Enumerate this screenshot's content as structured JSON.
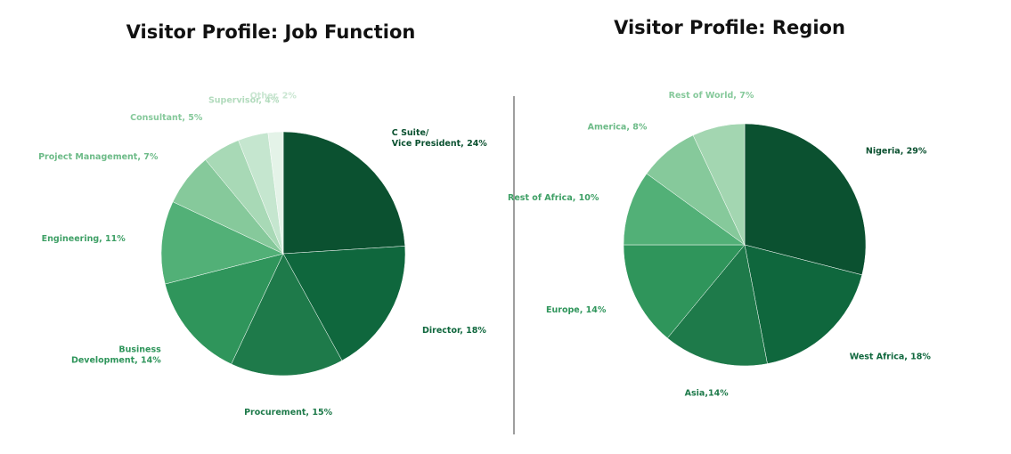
{
  "charts": {
    "left_title": "Visitor Profile: Job Function",
    "right_title": "Visitor Profile: Region"
  },
  "chart_data": [
    {
      "type": "pie",
      "title": "Visitor Profile: Job Function",
      "slices": [
        {
          "label": "C Suite/ Vice President",
          "label_lines": [
            "C Suite/",
            "Vice President, 24%"
          ],
          "value": 24,
          "color": "#0b5130",
          "label_color": "#0b5130"
        },
        {
          "label": "Director",
          "label_lines": [
            "Director, 18%"
          ],
          "value": 18,
          "color": "#0f673d",
          "label_color": "#0f673d"
        },
        {
          "label": "Procurement",
          "label_lines": [
            "Procurement, 15%"
          ],
          "value": 15,
          "color": "#1e7a4a",
          "label_color": "#1e7a4a"
        },
        {
          "label": "Business Development",
          "label_lines": [
            "Business",
            "Development, 14%"
          ],
          "value": 14,
          "color": "#2f955b",
          "label_color": "#2f955b"
        },
        {
          "label": "Engineering",
          "label_lines": [
            "Engineering, 11%"
          ],
          "value": 11,
          "color": "#52b077",
          "label_color": "#3fa066"
        },
        {
          "label": "Project Management",
          "label_lines": [
            "Project Management, 7%"
          ],
          "value": 7,
          "color": "#86c99b",
          "label_color": "#6dbb88"
        },
        {
          "label": "Consultant",
          "label_lines": [
            "Consultant, 5%"
          ],
          "value": 5,
          "color": "#a8d9b6",
          "label_color": "#86c99b"
        },
        {
          "label": "Supervisor",
          "label_lines": [
            "Supervisor, 4%"
          ],
          "value": 4,
          "color": "#c5e6cf",
          "label_color": "#b2dbbd"
        },
        {
          "label": "Other",
          "label_lines": [
            "Other, 2%"
          ],
          "value": 2,
          "color": "#e4f3e8",
          "label_color": "#c9e6d1"
        }
      ]
    },
    {
      "type": "pie",
      "title": "Visitor Profile: Region",
      "slices": [
        {
          "label": "Nigeria",
          "label_lines": [
            "Nigeria, 29%"
          ],
          "value": 29,
          "color": "#0b5130",
          "label_color": "#0b5130"
        },
        {
          "label": "West Africa",
          "label_lines": [
            "West Africa, 18%"
          ],
          "value": 18,
          "color": "#0f673d",
          "label_color": "#0f673d"
        },
        {
          "label": "Asia",
          "label_lines": [
            "Asia,14%"
          ],
          "value": 14,
          "color": "#1e7a4a",
          "label_color": "#1e7a4a"
        },
        {
          "label": "Europe",
          "label_lines": [
            "Europe, 14%"
          ],
          "value": 14,
          "color": "#2f955b",
          "label_color": "#2f955b"
        },
        {
          "label": "Rest of Africa",
          "label_lines": [
            "Rest of Africa, 10%"
          ],
          "value": 10,
          "color": "#52b077",
          "label_color": "#3fa066"
        },
        {
          "label": "America",
          "label_lines": [
            "America, 8%"
          ],
          "value": 8,
          "color": "#86c99b",
          "label_color": "#6dbb88"
        },
        {
          "label": "Rest of World",
          "label_lines": [
            "Rest of World, 7%"
          ],
          "value": 7,
          "color": "#a3d6b1",
          "label_color": "#86c99b"
        }
      ]
    }
  ]
}
